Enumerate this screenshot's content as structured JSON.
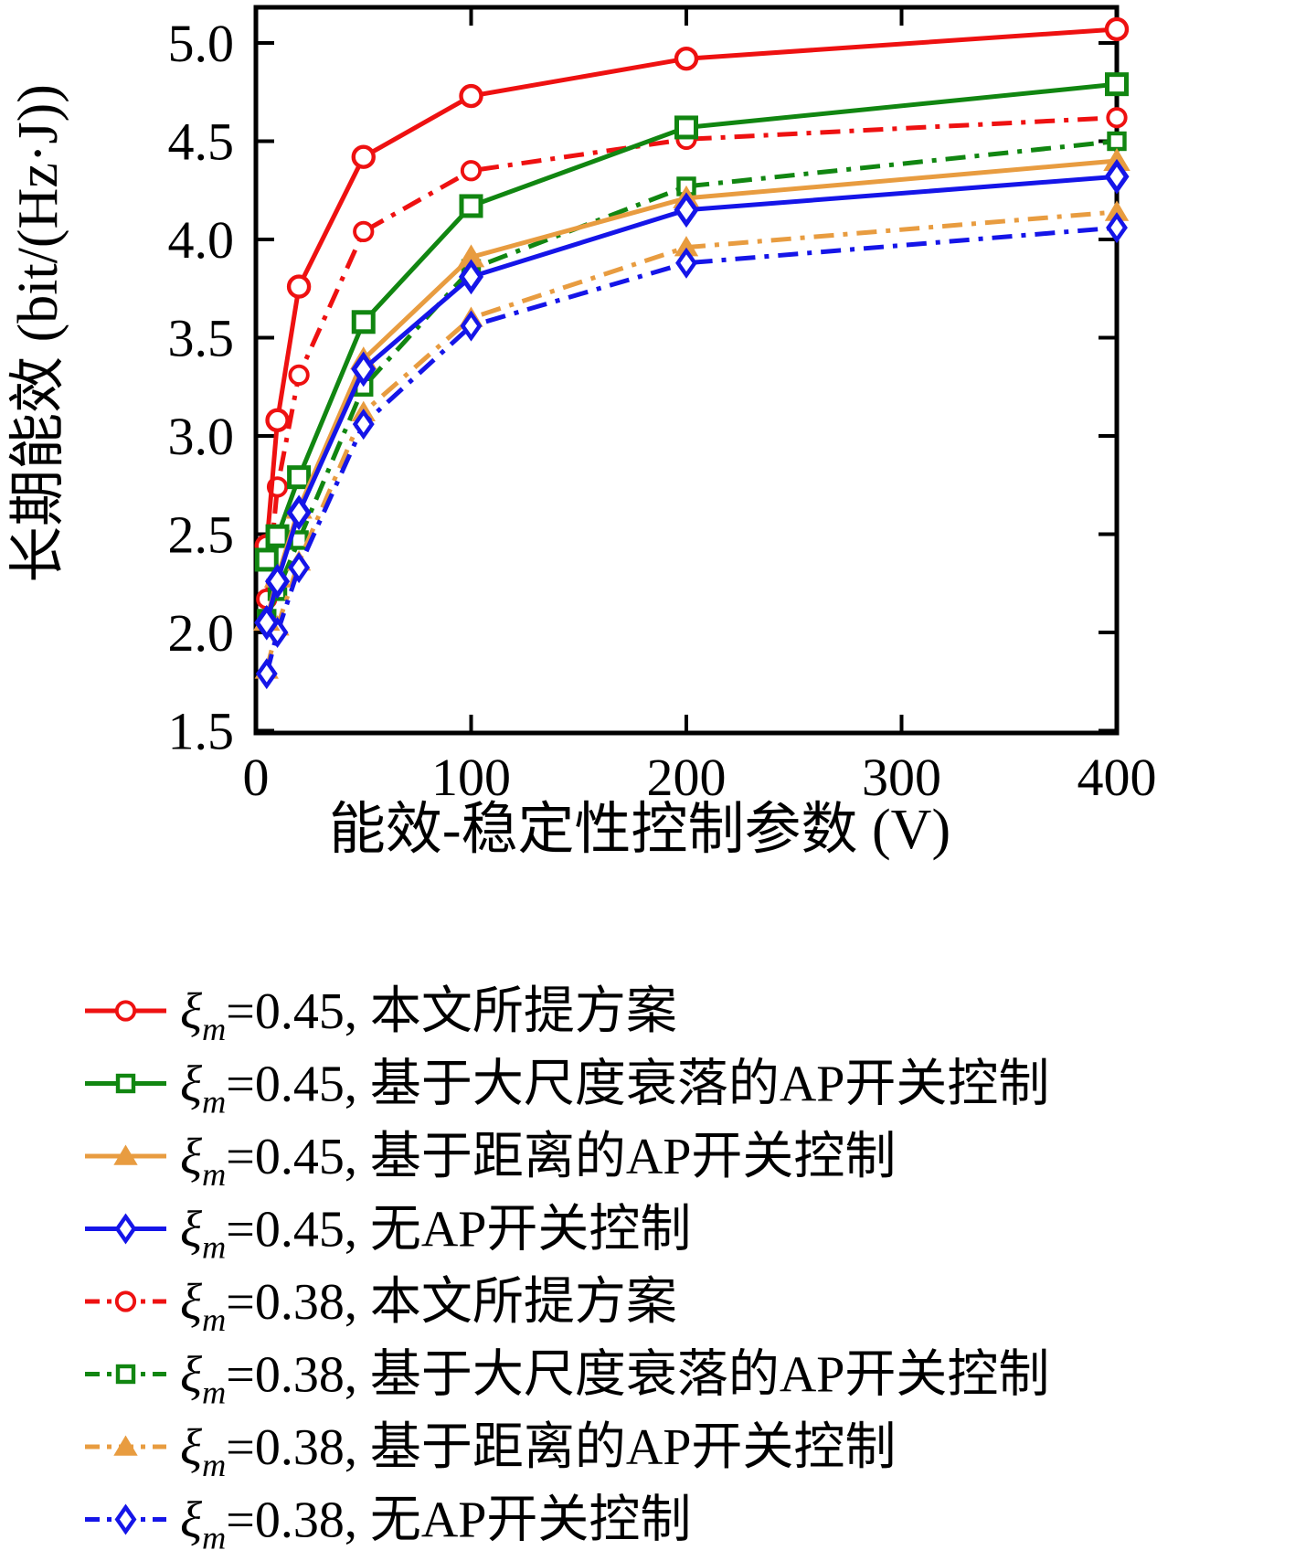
{
  "chart_data": {
    "type": "line",
    "title": "",
    "xlabel": "能效-稳定性控制参数 (V)",
    "ylabel": "长期能效 (bit/(Hz·J))",
    "x": [
      5,
      10,
      20,
      50,
      100,
      200,
      400
    ],
    "xlim": [
      0,
      400
    ],
    "ylim": [
      1.49,
      5.18
    ],
    "x_ticks": [
      0,
      100,
      200,
      300,
      400
    ],
    "x_tick_labels": [
      "0",
      "100",
      "200",
      "300",
      "400"
    ],
    "y_ticks": [
      1.5,
      2.0,
      2.5,
      3.0,
      3.5,
      4.0,
      4.5,
      5.0
    ],
    "y_tick_labels": [
      "1.5",
      "2.0",
      "2.5",
      "3.0",
      "3.5",
      "4.0",
      "4.5",
      "5.0"
    ],
    "grid": false,
    "legend_position": "below-left",
    "colors": {
      "red": "#ee1111",
      "green": "#118611",
      "orange": "#e89c40",
      "blue": "#1515e8",
      "axis": "#000000"
    },
    "series": [
      {
        "id": "xi045-proposed",
        "sym": "ξ",
        "sub": "m",
        "label": "=0.45, 本文所提方案",
        "color": "#ee1111",
        "style": "solid",
        "marker": "circle",
        "values": [
          2.44,
          3.08,
          3.76,
          4.42,
          4.73,
          4.92,
          5.07
        ]
      },
      {
        "id": "xi045-large-scale-fading-ap-switch",
        "sym": "ξ",
        "sub": "m",
        "label": "=0.45, 基于大尺度衰落的AP开关控制",
        "color": "#118611",
        "style": "solid",
        "marker": "square",
        "values": [
          2.37,
          2.49,
          2.79,
          3.58,
          4.17,
          4.57,
          4.79
        ]
      },
      {
        "id": "xi045-distance-based-ap-switch",
        "sym": "ξ",
        "sub": "m",
        "label": "=0.45, 基于距离的AP开关控制",
        "color": "#e89c40",
        "style": "solid",
        "marker": "triangle",
        "values": [
          2.06,
          2.28,
          2.63,
          3.39,
          3.91,
          4.21,
          4.4
        ]
      },
      {
        "id": "xi045-no-ap-switch",
        "sym": "ξ",
        "sub": "m",
        "label": "=0.45, 无AP开关控制",
        "color": "#1515e8",
        "style": "solid",
        "marker": "diamond",
        "values": [
          2.05,
          2.26,
          2.61,
          3.34,
          3.81,
          4.15,
          4.32
        ]
      },
      {
        "id": "xi038-proposed",
        "sym": "ξ",
        "sub": "m",
        "label": "=0.38, 本文所提方案",
        "color": "#ee1111",
        "style": "dashdot",
        "marker": "circle",
        "values": [
          2.17,
          2.74,
          3.31,
          4.04,
          4.35,
          4.51,
          4.62
        ]
      },
      {
        "id": "xi038-large-scale-fading-ap-switch",
        "sym": "ξ",
        "sub": "m",
        "label": "=0.38, 基于大尺度衰落的AP开关控制",
        "color": "#118611",
        "style": "dashdot",
        "marker": "square",
        "values": [
          2.07,
          2.21,
          2.47,
          3.25,
          3.85,
          4.27,
          4.5
        ]
      },
      {
        "id": "xi038-distance-based-ap-switch",
        "sym": "ξ",
        "sub": "m",
        "label": "=0.38, 基于距离的AP开关控制",
        "color": "#e89c40",
        "style": "dashdot",
        "marker": "triangle",
        "values": [
          1.81,
          2.03,
          2.36,
          3.12,
          3.6,
          3.96,
          4.14
        ]
      },
      {
        "id": "xi038-no-ap-switch",
        "sym": "ξ",
        "sub": "m",
        "label": "=0.38, 无AP开关控制",
        "color": "#1515e8",
        "style": "dashdot",
        "marker": "diamond",
        "values": [
          1.79,
          2.0,
          2.33,
          3.06,
          3.56,
          3.88,
          4.06
        ]
      }
    ]
  }
}
